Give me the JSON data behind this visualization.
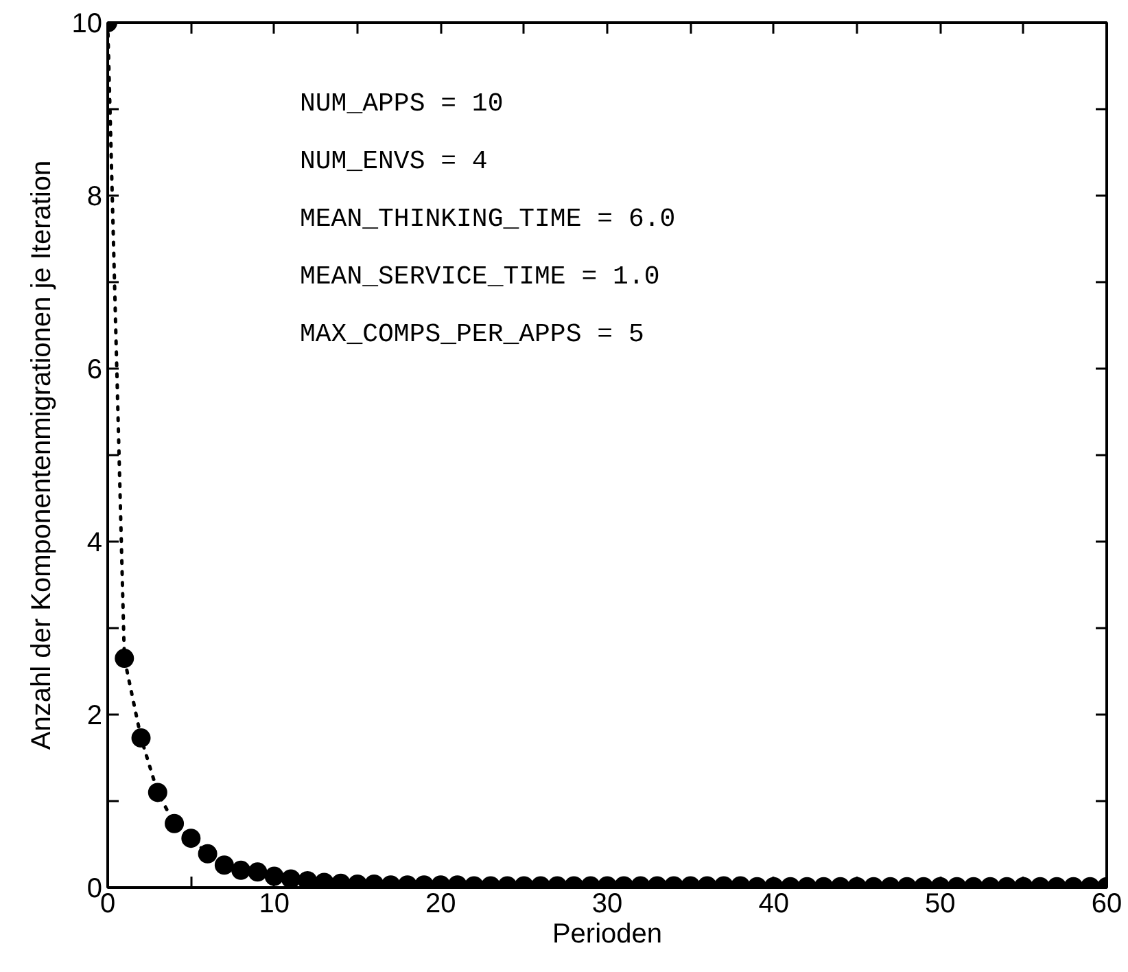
{
  "chart_data": {
    "type": "line",
    "xlabel": "Perioden",
    "ylabel": "Anzahl der Komponentenmigrationen je Iteration",
    "x": [
      0,
      1,
      2,
      3,
      4,
      5,
      6,
      7,
      8,
      9,
      10,
      11,
      12,
      13,
      14,
      15,
      16,
      17,
      18,
      19,
      20,
      21,
      22,
      23,
      24,
      25,
      26,
      27,
      28,
      29,
      30,
      31,
      32,
      33,
      34,
      35,
      36,
      37,
      38,
      39,
      40,
      41,
      42,
      43,
      44,
      45,
      46,
      47,
      48,
      49,
      50,
      51,
      52,
      53,
      54,
      55,
      56,
      57,
      58,
      59,
      60
    ],
    "series": [
      {
        "color": "#000000",
        "values": [
          10,
          2.65,
          1.73,
          1.1,
          0.74,
          0.57,
          0.39,
          0.26,
          0.2,
          0.18,
          0.13,
          0.1,
          0.08,
          0.06,
          0.05,
          0.04,
          0.04,
          0.03,
          0.03,
          0.03,
          0.03,
          0.03,
          0.02,
          0.02,
          0.02,
          0.02,
          0.02,
          0.02,
          0.02,
          0.02,
          0.02,
          0.02,
          0.02,
          0.02,
          0.02,
          0.02,
          0.02,
          0.02,
          0.02,
          0.01,
          0.01,
          0.01,
          0.01,
          0.01,
          0.01,
          0.01,
          0.01,
          0.01,
          0.01,
          0.01,
          0.01,
          0.01,
          0.01,
          0.01,
          0.01,
          0.01,
          0.01,
          0.01,
          0.01,
          0.01,
          0.01
        ]
      }
    ],
    "marker": "circle",
    "line_style": "dotted",
    "grid": false,
    "xlim": [
      0,
      60
    ],
    "ylim": [
      0,
      10
    ],
    "xticks": [
      0,
      {
        "value": 5,
        "label": null
      },
      10,
      {
        "value": 15,
        "label": null
      },
      20,
      {
        "value": 25,
        "label": null
      },
      30,
      {
        "value": 35,
        "label": null
      },
      40,
      {
        "value": 45,
        "label": null
      },
      50,
      {
        "value": 55,
        "label": null
      },
      60
    ],
    "yticks": [
      0,
      {
        "value": 1,
        "label": null
      },
      2,
      {
        "value": 3,
        "label": null
      },
      4,
      {
        "value": 5,
        "label": null
      },
      6,
      {
        "value": 7,
        "label": null
      },
      8,
      {
        "value": 9,
        "label": null
      },
      10
    ],
    "annotations": [
      "NUM_APPS = 10",
      "NUM_ENVS = 4",
      "MEAN_THINKING_TIME = 6.0",
      "MEAN_SERVICE_TIME = 1.0",
      "MAX_COMPS_PER_APPS = 5"
    ]
  }
}
